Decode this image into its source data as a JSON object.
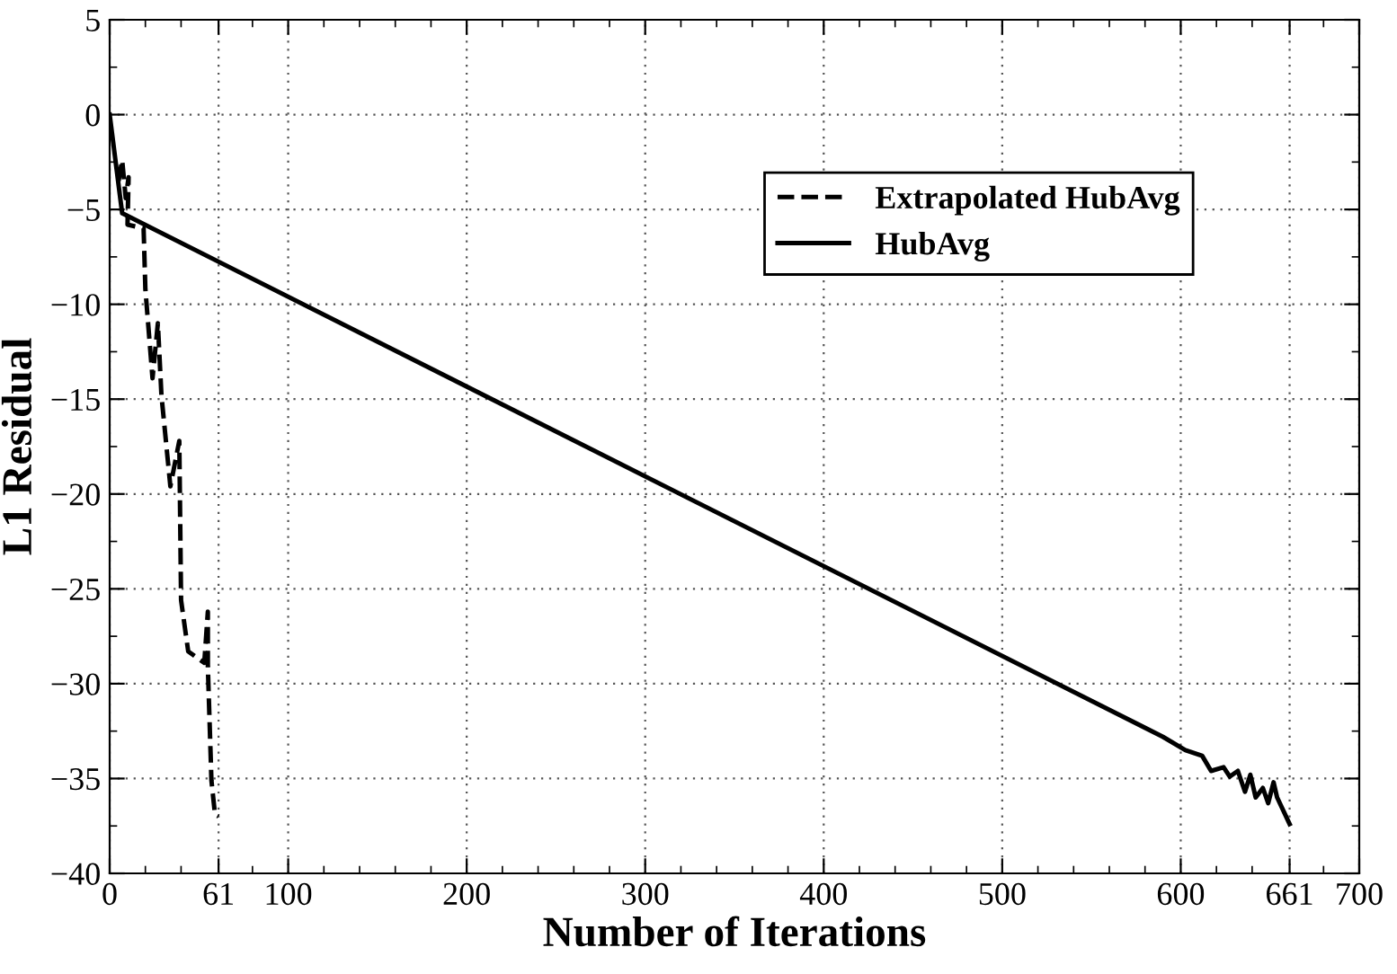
{
  "chart_data": {
    "type": "line",
    "xlabel": "Number of Iterations",
    "ylabel": "L1 Residual",
    "xlim": [
      0,
      700
    ],
    "ylim": [
      -40,
      5
    ],
    "xticks": [
      0,
      {
        "value": 20,
        "label": null
      },
      {
        "value": 40,
        "label": null
      },
      61,
      {
        "value": 80,
        "label": null
      },
      100,
      {
        "value": 120,
        "label": null
      },
      {
        "value": 140,
        "label": null
      },
      {
        "value": 160,
        "label": null
      },
      {
        "value": 180,
        "label": null
      },
      200,
      {
        "value": 220,
        "label": null
      },
      {
        "value": 240,
        "label": null
      },
      {
        "value": 260,
        "label": null
      },
      {
        "value": 280,
        "label": null
      },
      300,
      {
        "value": 320,
        "label": null
      },
      {
        "value": 340,
        "label": null
      },
      {
        "value": 360,
        "label": null
      },
      {
        "value": 380,
        "label": null
      },
      400,
      {
        "value": 420,
        "label": null
      },
      {
        "value": 440,
        "label": null
      },
      {
        "value": 460,
        "label": null
      },
      {
        "value": 480,
        "label": null
      },
      500,
      {
        "value": 520,
        "label": null
      },
      {
        "value": 540,
        "label": null
      },
      {
        "value": 560,
        "label": null
      },
      {
        "value": 580,
        "label": null
      },
      600,
      {
        "value": 620,
        "label": null
      },
      {
        "value": 640,
        "label": null
      },
      661,
      {
        "value": 680,
        "label": null
      },
      700
    ],
    "yticks": [
      -40,
      {
        "value": -37.5,
        "label": null
      },
      -35,
      {
        "value": -32.5,
        "label": null
      },
      -30,
      {
        "value": -27.5,
        "label": null
      },
      -25,
      {
        "value": -22.5,
        "label": null
      },
      -20,
      {
        "value": -17.5,
        "label": null
      },
      -15,
      {
        "value": -12.5,
        "label": null
      },
      -10,
      {
        "value": -7.5,
        "label": null
      },
      -5,
      {
        "value": -2.5,
        "label": null
      },
      0,
      {
        "value": 2.5,
        "label": null
      },
      5
    ],
    "grid": true,
    "legend": "top right",
    "series": [
      {
        "name": "Extrapolated HubAvg",
        "color": "#000000",
        "line_style": "dashed",
        "x": [
          5,
          7,
          9,
          10.6,
          10,
          19,
          20,
          24,
          27,
          29,
          34,
          39,
          40,
          44,
          53,
          55,
          55,
          57,
          59,
          61
        ],
        "values": [
          -3.5,
          -2.4,
          -4.4,
          -3.3,
          -5.8,
          -6.0,
          -9.2,
          -13.9,
          -11.0,
          -14.8,
          -19.6,
          -17.2,
          -25.6,
          -28.3,
          -28.9,
          -26.2,
          -29.1,
          -35.1,
          -36.9,
          -37.0
        ]
      },
      {
        "name": "HubAvg",
        "color": "#000000",
        "line_style": "solid",
        "x": [
          0,
          7,
          590,
          602.6,
          612,
          617,
          624,
          627.5,
          632,
          636,
          639,
          642,
          646,
          649,
          652,
          654,
          661
        ],
        "values": [
          0,
          -5.2,
          -32.8,
          -33.5,
          -33.8,
          -34.6,
          -34.4,
          -34.9,
          -34.6,
          -35.7,
          -34.8,
          -36.0,
          -35.5,
          -36.3,
          -35.2,
          -36.0,
          -37.4
        ]
      }
    ]
  }
}
